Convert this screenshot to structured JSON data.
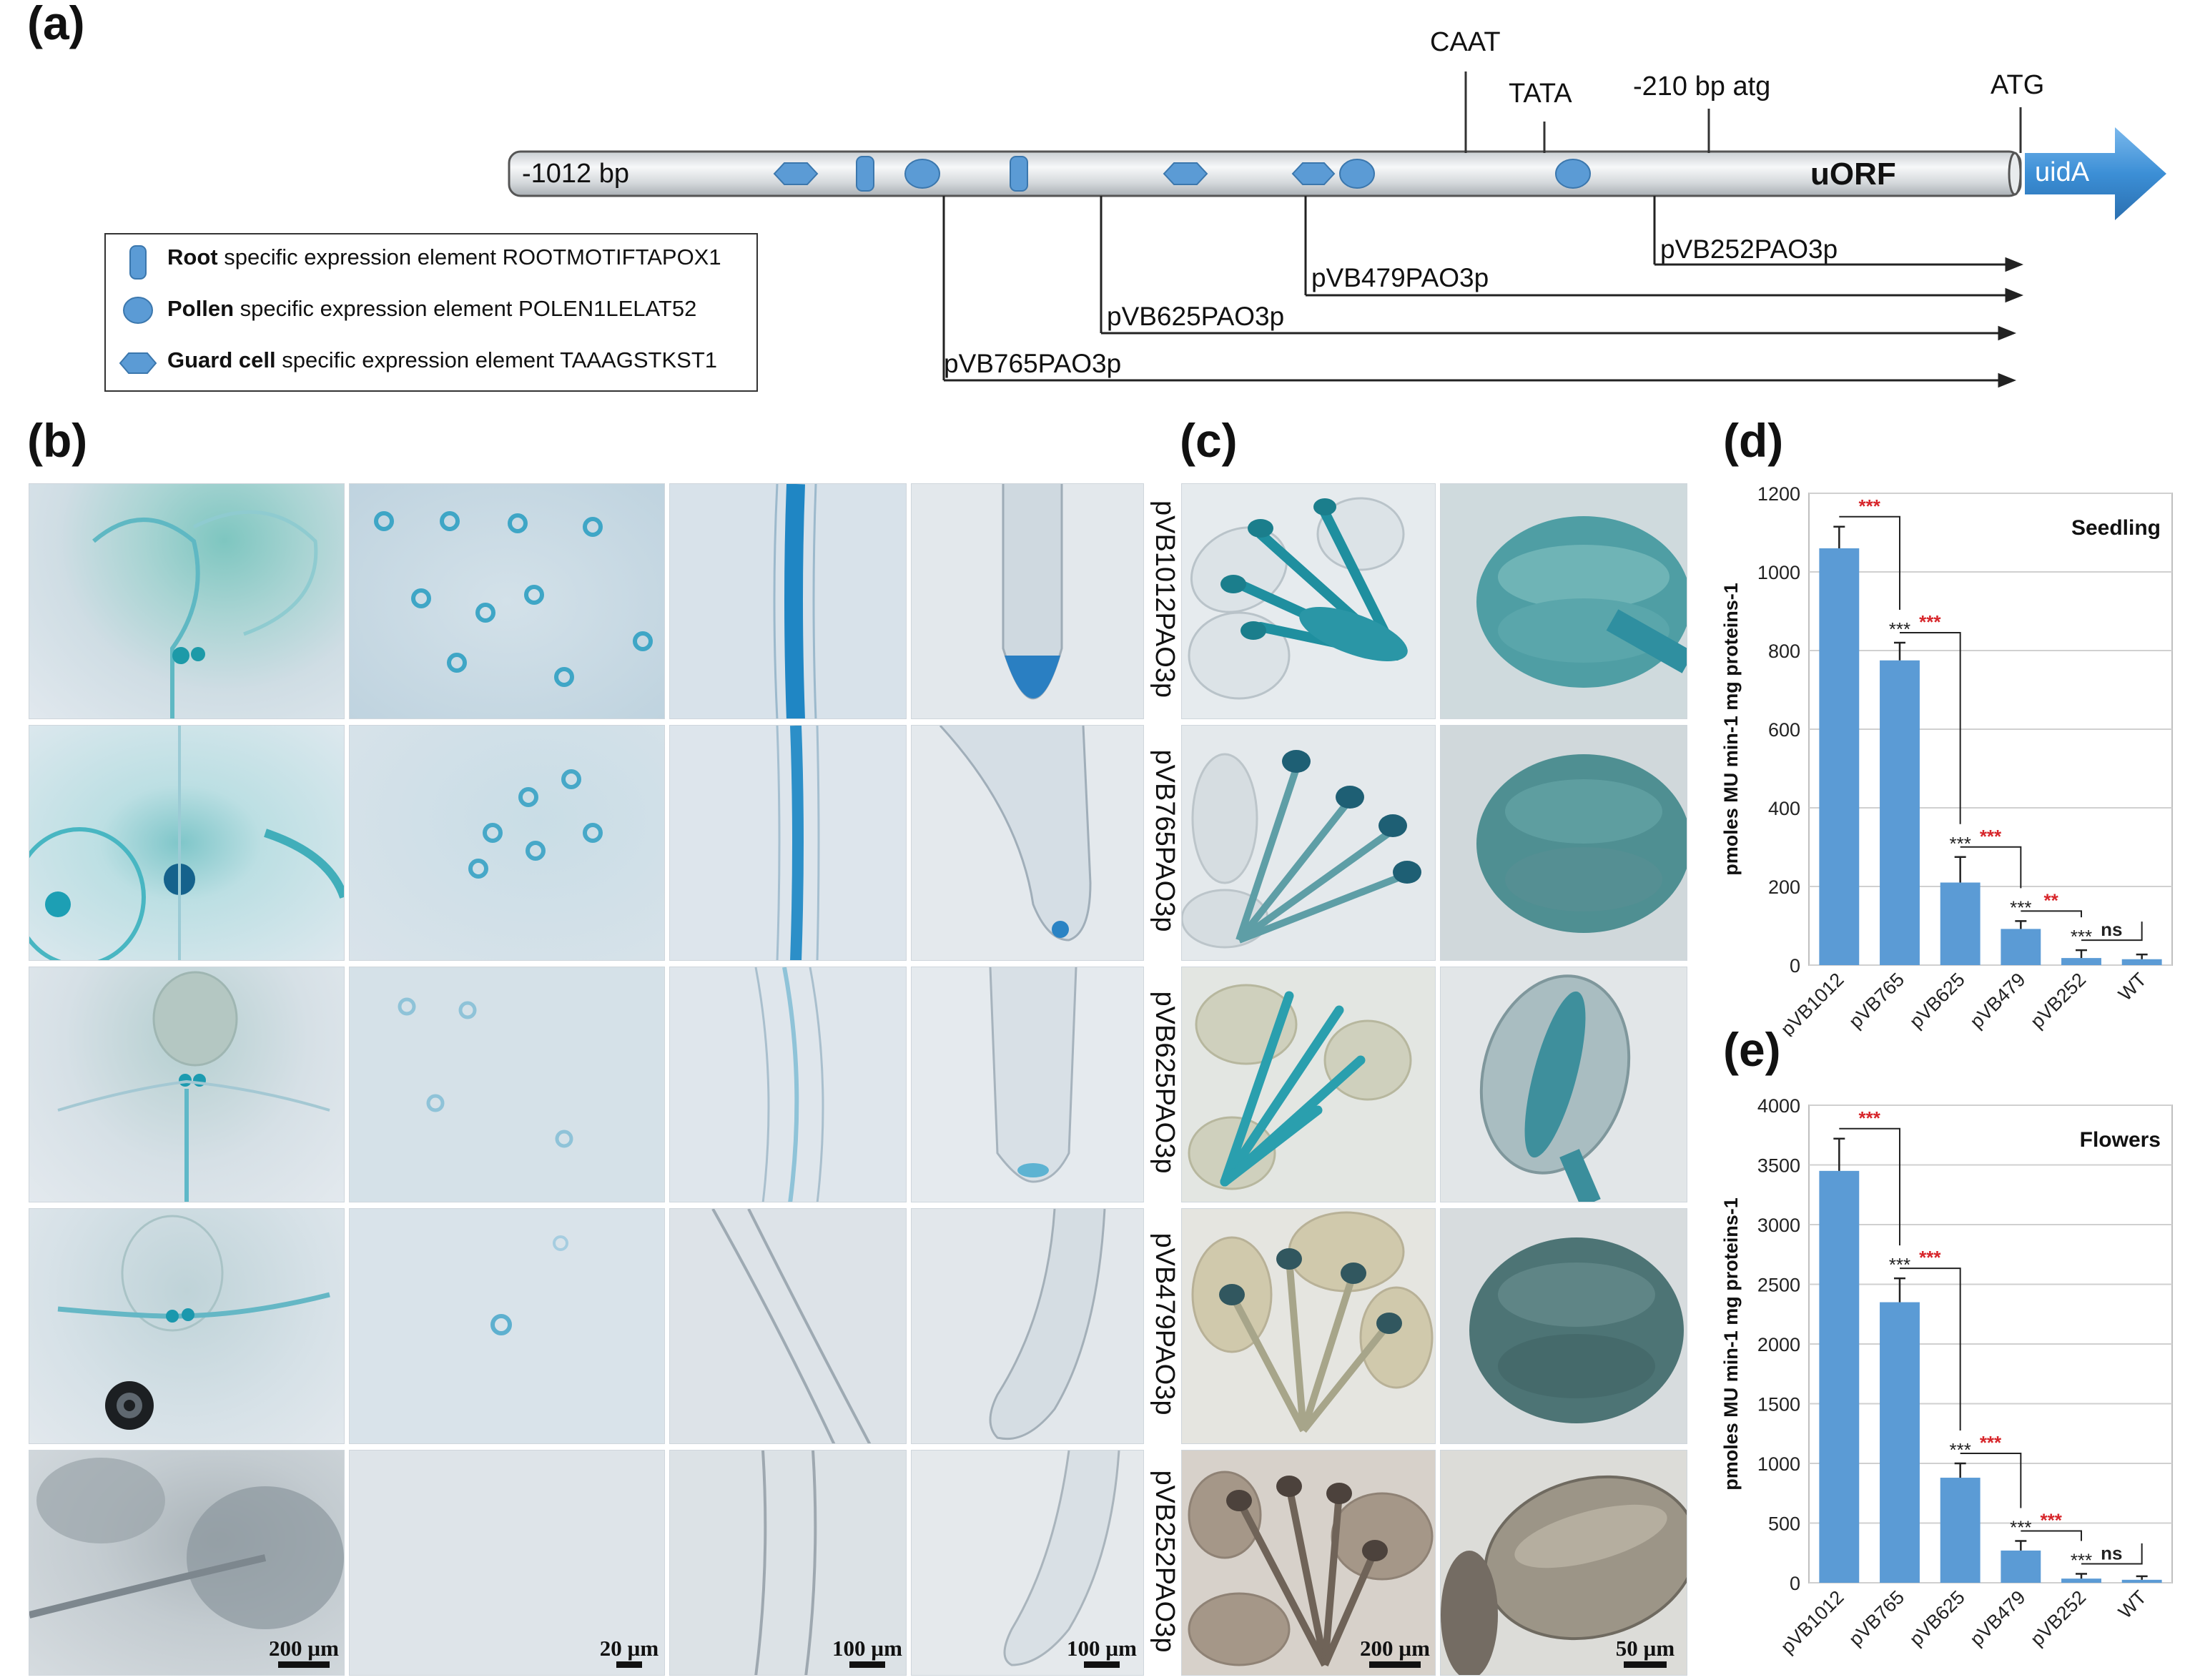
{
  "panels": {
    "a": "(a)",
    "b": "(b)",
    "c": "(c)",
    "d": "(d)",
    "e": "(e)"
  },
  "promoter": {
    "start_label": "-1012 bp",
    "uorf_label": "uORF",
    "reporter_label": "uidA",
    "markers": {
      "caat": "CAAT",
      "tata": "TATA",
      "atg210": "-210 bp atg",
      "atg": "ATG"
    },
    "constructs": [
      "pVB252PAO3p",
      "pVB479PAO3p",
      "pVB625PAO3p",
      "pVB765PAO3p"
    ],
    "colors": {
      "element": "#5b9bd5",
      "bar": "#dfe3e6",
      "arrow": "#3c8fd6"
    }
  },
  "legend": [
    {
      "shape": "root",
      "bold": "Root",
      "text": " specific expression element ROOTMOTIFTAPOX1"
    },
    {
      "shape": "pollen",
      "bold": "Pollen",
      "text": " specific expression element POLEN1LELAT52"
    },
    {
      "shape": "guard",
      "bold": "Guard cell",
      "text": " specific expression element TAAAGSTKST1"
    }
  ],
  "micro_rows": [
    "pVB1012PAO3p",
    "pVB765PAO3p",
    "pVB625PAO3p",
    "pVB479PAO3p",
    "pVB252PAO3p"
  ],
  "scale_bars": {
    "b": [
      "200 µm",
      "20 µm",
      "100 µm",
      "100 µm"
    ],
    "c": [
      "200 µm",
      "50 µm"
    ]
  },
  "chart_data": [
    {
      "type": "bar",
      "panel": "d",
      "title": "Seedling",
      "ylabel": "pmoles MU min-1 mg proteins-1",
      "categories": [
        "pVB1012",
        "pVB765",
        "pVB625",
        "pVB479",
        "pVB252",
        "WT"
      ],
      "values": [
        1060,
        775,
        210,
        92,
        18,
        15
      ],
      "errors": [
        55,
        45,
        65,
        20,
        20,
        12
      ],
      "ylim": [
        0,
        1200
      ],
      "yticks": [
        0,
        200,
        400,
        600,
        800,
        1000,
        1200
      ],
      "point_labels": [
        "",
        "***",
        "***",
        "***",
        "***",
        ""
      ],
      "comparisons": [
        "***",
        "***",
        "***",
        "**",
        "ns"
      ],
      "grid": true,
      "bar_color": "#5b9bd5"
    },
    {
      "type": "bar",
      "panel": "e",
      "title": "Flowers",
      "ylabel": "pmoles MU min-1 mg proteins-1",
      "categories": [
        "pVB1012",
        "pVB765",
        "pVB625",
        "pVB479",
        "pVB252",
        "WT"
      ],
      "values": [
        3450,
        2350,
        880,
        270,
        35,
        25
      ],
      "errors": [
        270,
        200,
        120,
        80,
        40,
        30
      ],
      "ylim": [
        0,
        4000
      ],
      "yticks": [
        0,
        500,
        1000,
        1500,
        2000,
        2500,
        3000,
        3500,
        4000
      ],
      "point_labels": [
        "",
        "***",
        "***",
        "***",
        "***",
        ""
      ],
      "comparisons": [
        "***",
        "***",
        "***",
        "***",
        "ns"
      ],
      "grid": true,
      "bar_color": "#5b9bd5"
    }
  ]
}
